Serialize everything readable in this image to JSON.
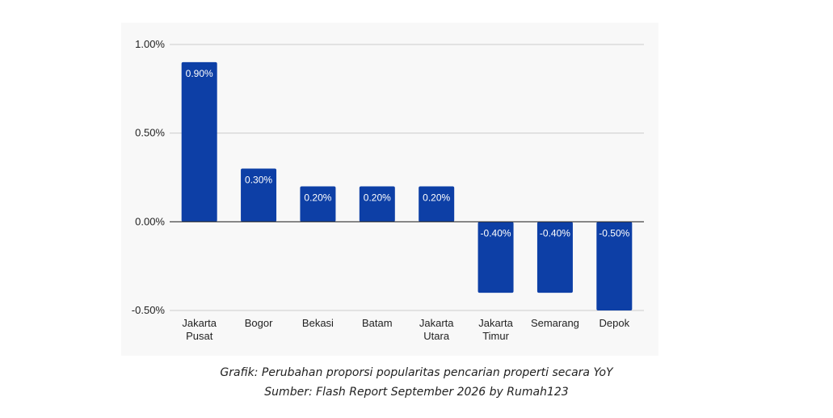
{
  "chart_data": {
    "type": "bar",
    "categories": [
      [
        "Jakarta",
        "Pusat"
      ],
      [
        "Bogor"
      ],
      [
        "Bekasi"
      ],
      [
        "Batam"
      ],
      [
        "Jakarta",
        "Utara"
      ],
      [
        "Jakarta",
        "Timur"
      ],
      [
        "Semarang"
      ],
      [
        "Depok"
      ]
    ],
    "values": [
      0.9,
      0.3,
      0.2,
      0.2,
      0.2,
      -0.4,
      -0.4,
      -0.5
    ],
    "value_labels": [
      "0.90%",
      "0.30%",
      "0.20%",
      "0.20%",
      "0.20%",
      "-0.40%",
      "-0.40%",
      "-0.50%"
    ],
    "ylim": [
      -0.5,
      1.0
    ],
    "yticks": [
      1.0,
      0.5,
      0.0,
      -0.5
    ],
    "ytick_labels": [
      "1.00%",
      "0.50%",
      "0.00%",
      "-0.50%"
    ],
    "grid": true,
    "bar_color": "#0d3fa6"
  },
  "caption": {
    "line1": "Grafik: Perubahan proporsi popularitas pencarian properti secara YoY",
    "line2": "Sumber: Flash Report September 2026 by Rumah123"
  }
}
